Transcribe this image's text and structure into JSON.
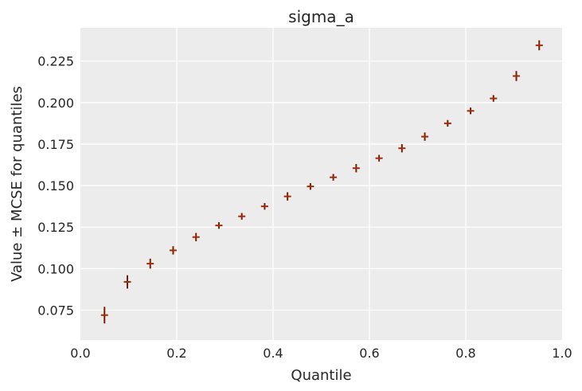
{
  "chart_data": {
    "type": "scatter",
    "title": "sigma_a",
    "xlabel": "Quantile",
    "ylabel": "Value ± MCSE for quantiles",
    "xlim": [
      0.0,
      1.0
    ],
    "ylim": [
      0.057,
      0.245
    ],
    "xticks": [
      0.0,
      0.2,
      0.4,
      0.6,
      0.8,
      1.0
    ],
    "xtick_labels": [
      "0.0",
      "0.2",
      "0.4",
      "0.6",
      "0.8",
      "1.0"
    ],
    "yticks": [
      0.075,
      0.1,
      0.125,
      0.15,
      0.175,
      0.2,
      0.225
    ],
    "ytick_labels": [
      "0.075",
      "0.100",
      "0.125",
      "0.150",
      "0.175",
      "0.200",
      "0.225"
    ],
    "grid": true,
    "colors": {
      "background": "#ececec",
      "grid": "#ffffff",
      "point": "#a52a08",
      "errorbar": "#7a1f00"
    },
    "x": [
      0.05,
      0.0975,
      0.145,
      0.1925,
      0.24,
      0.2875,
      0.335,
      0.3825,
      0.43,
      0.4775,
      0.525,
      0.5725,
      0.62,
      0.6675,
      0.715,
      0.7625,
      0.81,
      0.8575,
      0.905,
      0.9525
    ],
    "values": [
      0.072,
      0.092,
      0.103,
      0.111,
      0.119,
      0.126,
      0.1315,
      0.1375,
      0.1435,
      0.1495,
      0.155,
      0.1605,
      0.1665,
      0.1725,
      0.1795,
      0.1875,
      0.195,
      0.2025,
      0.216,
      0.2345
    ],
    "mcse": [
      0.005,
      0.004,
      0.003,
      0.0025,
      0.0025,
      0.002,
      0.002,
      0.002,
      0.0025,
      0.002,
      0.002,
      0.0025,
      0.002,
      0.0025,
      0.0025,
      0.002,
      0.002,
      0.002,
      0.003,
      0.003
    ]
  }
}
